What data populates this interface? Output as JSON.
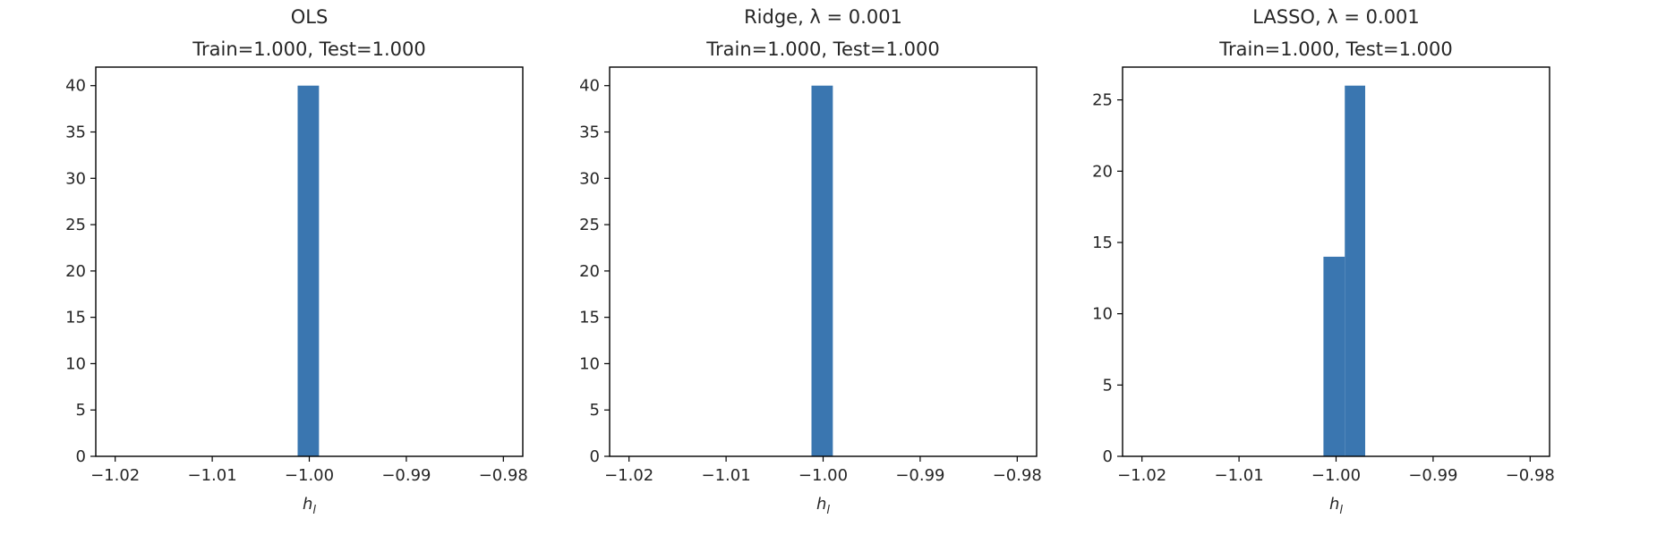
{
  "chart_data": [
    {
      "type": "bar",
      "title_lines": [
        "OLS",
        "Train=1.000, Test=1.000"
      ],
      "xlabel": "h_l",
      "xlim": [
        -1.022,
        -0.978
      ],
      "ylim": [
        0,
        42
      ],
      "xticks": [
        -1.02,
        -1.01,
        -1.0,
        -0.99,
        -0.98
      ],
      "xtick_labels": [
        "−1.02",
        "−1.01",
        "−1.00",
        "−0.99",
        "−0.98"
      ],
      "yticks": [
        0,
        5,
        10,
        15,
        20,
        25,
        30,
        35,
        40
      ],
      "ytick_labels": [
        "0",
        "5",
        "10",
        "15",
        "20",
        "25",
        "30",
        "35",
        "40"
      ],
      "bins": [
        {
          "x0": -1.0012,
          "x1": -0.999,
          "value": 40
        }
      ],
      "color": "#3a76b0",
      "grid": false
    },
    {
      "type": "bar",
      "title_lines": [
        "Ridge, λ = 0.001",
        "Train=1.000, Test=1.000"
      ],
      "xlabel": "h_l",
      "xlim": [
        -1.022,
        -0.978
      ],
      "ylim": [
        0,
        42
      ],
      "xticks": [
        -1.02,
        -1.01,
        -1.0,
        -0.99,
        -0.98
      ],
      "xtick_labels": [
        "−1.02",
        "−1.01",
        "−1.00",
        "−0.99",
        "−0.98"
      ],
      "yticks": [
        0,
        5,
        10,
        15,
        20,
        25,
        30,
        35,
        40
      ],
      "ytick_labels": [
        "0",
        "5",
        "10",
        "15",
        "20",
        "25",
        "30",
        "35",
        "40"
      ],
      "bins": [
        {
          "x0": -1.0012,
          "x1": -0.999,
          "value": 40
        }
      ],
      "color": "#3a76b0",
      "grid": false
    },
    {
      "type": "bar",
      "title_lines": [
        "LASSO, λ = 0.001",
        "Train=1.000, Test=1.000"
      ],
      "xlabel": "h_l",
      "xlim": [
        -1.022,
        -0.978
      ],
      "ylim": [
        0,
        27.3
      ],
      "xticks": [
        -1.02,
        -1.01,
        -1.0,
        -0.99,
        -0.98
      ],
      "xtick_labels": [
        "−1.02",
        "−1.01",
        "−1.00",
        "−0.99",
        "−0.98"
      ],
      "yticks": [
        0,
        5,
        10,
        15,
        20,
        25
      ],
      "ytick_labels": [
        "0",
        "5",
        "10",
        "15",
        "20",
        "25"
      ],
      "bins": [
        {
          "x0": -1.0013,
          "x1": -0.9991,
          "value": 14
        },
        {
          "x0": -0.9991,
          "x1": -0.997,
          "value": 26
        }
      ],
      "color": "#3a76b0",
      "grid": false
    }
  ]
}
